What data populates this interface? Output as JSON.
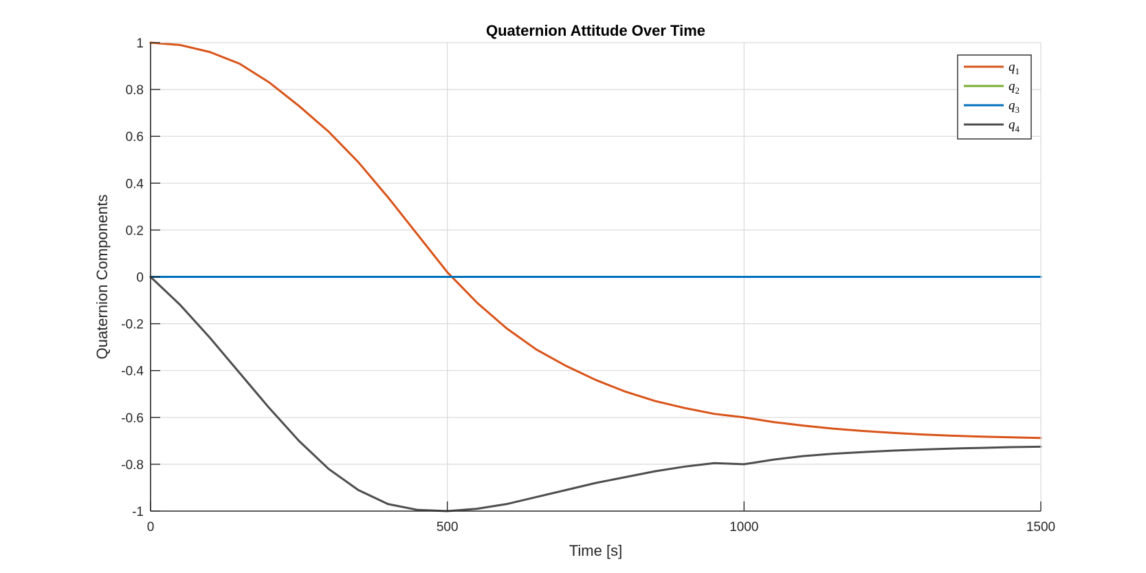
{
  "chart_data": {
    "type": "line",
    "title": "Quaternion Attitude Over Time",
    "xlabel": "Time [s]",
    "ylabel": "Quaternion Components",
    "xlim": [
      0,
      1500
    ],
    "ylim": [
      -1,
      1
    ],
    "xticks": [
      0,
      500,
      1000,
      1500
    ],
    "xtick_labels": [
      "0",
      "500",
      "1000",
      "1500"
    ],
    "yticks": [
      1,
      0.8,
      0.6,
      0.4,
      0.2,
      0,
      -0.2,
      -0.4,
      -0.6,
      -0.8,
      -1
    ],
    "ytick_labels": [
      "1",
      "0.8",
      "0.6",
      "0.4",
      "0.2",
      "0",
      "-0.2",
      "-0.4",
      "-0.6",
      "-0.8",
      "-1"
    ],
    "grid": true,
    "legend_position": "top-right",
    "series": [
      {
        "name": "q1",
        "legend_base": "q",
        "legend_sub": "1",
        "color": "#D95319",
        "x": [
          0,
          50,
          100,
          150,
          200,
          250,
          300,
          350,
          400,
          450,
          500,
          550,
          600,
          650,
          700,
          750,
          800,
          850,
          900,
          950,
          1000,
          1050,
          1100,
          1150,
          1200,
          1250,
          1300,
          1350,
          1400,
          1450,
          1500
        ],
        "y": [
          1,
          0.99,
          0.96,
          0.91,
          0.83,
          0.73,
          0.62,
          0.49,
          0.34,
          0.18,
          0.02,
          -0.11,
          -0.22,
          -0.31,
          -0.38,
          -0.44,
          -0.49,
          -0.53,
          -0.56,
          -0.585,
          -0.6,
          -0.62,
          -0.635,
          -0.648,
          -0.658,
          -0.666,
          -0.673,
          -0.678,
          -0.682,
          -0.685,
          -0.688
        ]
      },
      {
        "name": "q2",
        "legend_base": "q",
        "legend_sub": "2",
        "color": "#77AC30",
        "x": [
          0,
          1500
        ],
        "y": [
          0,
          0
        ]
      },
      {
        "name": "q3",
        "legend_base": "q",
        "legend_sub": "3",
        "color": "#0072BD",
        "x": [
          0,
          1500
        ],
        "y": [
          0,
          0
        ]
      },
      {
        "name": "q4",
        "legend_base": "q",
        "legend_sub": "4",
        "color": "#4D4D4D",
        "x": [
          0,
          50,
          100,
          150,
          200,
          250,
          300,
          350,
          400,
          450,
          500,
          550,
          600,
          650,
          700,
          750,
          800,
          850,
          900,
          950,
          1000,
          1050,
          1100,
          1150,
          1200,
          1250,
          1300,
          1350,
          1400,
          1450,
          1500
        ],
        "y": [
          0,
          -0.12,
          -0.26,
          -0.41,
          -0.56,
          -0.7,
          -0.82,
          -0.91,
          -0.97,
          -0.995,
          -1,
          -0.99,
          -0.97,
          -0.94,
          -0.91,
          -0.88,
          -0.855,
          -0.83,
          -0.81,
          -0.795,
          -0.8,
          -0.78,
          -0.765,
          -0.755,
          -0.748,
          -0.742,
          -0.737,
          -0.733,
          -0.73,
          -0.727,
          -0.725
        ]
      }
    ]
  }
}
